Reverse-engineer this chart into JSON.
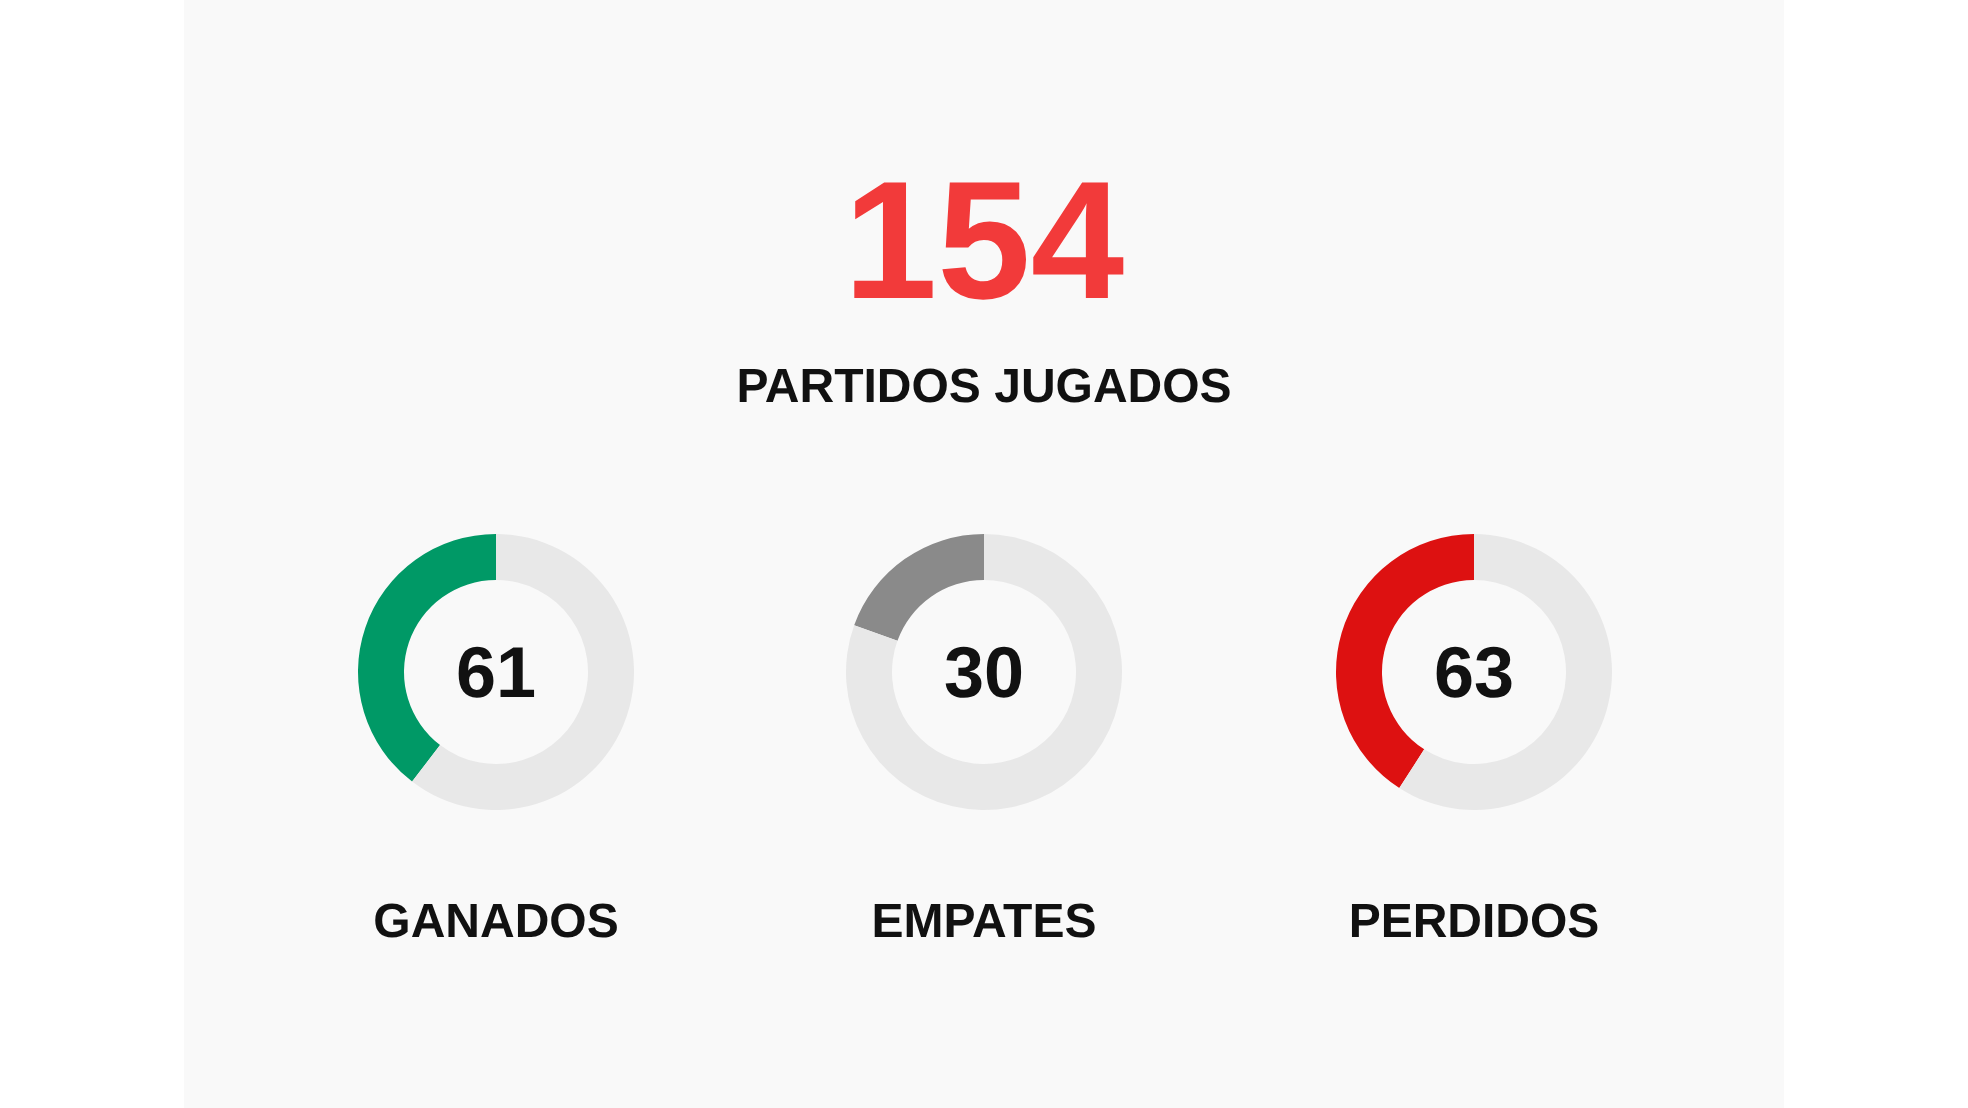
{
  "chart_data": [
    {
      "type": "other",
      "title": "154",
      "subtitle": "PARTIDOS JUGADOS",
      "colors": [
        "#f23a3a"
      ]
    },
    {
      "type": "donut",
      "xlabel": "GANADOS",
      "annotations": [
        "61"
      ],
      "categories": [
        null,
        null
      ],
      "values": [
        39.6,
        60.4
      ],
      "colors": [
        "#009966",
        "#e8e8e8"
      ]
    },
    {
      "type": "donut",
      "xlabel": "EMPATES",
      "annotations": [
        "30"
      ],
      "categories": [
        null,
        null
      ],
      "values": [
        19.5,
        80.5
      ],
      "colors": [
        "#8a8a8a",
        "#e8e8e8"
      ]
    },
    {
      "type": "donut",
      "xlabel": "PERDIDOS",
      "annotations": [
        "63"
      ],
      "categories": [
        null,
        null
      ],
      "values": [
        40.9,
        59.1
      ],
      "colors": [
        "#dd1111",
        "#e8e8e8"
      ]
    }
  ]
}
